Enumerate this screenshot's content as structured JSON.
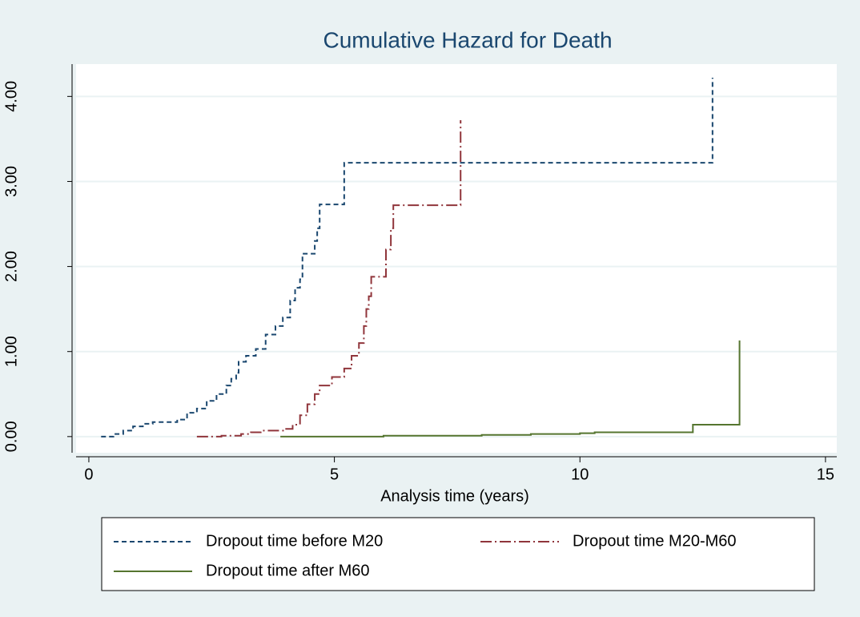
{
  "chart_data": {
    "type": "line",
    "step": "post",
    "title": "Cumulative Hazard for Death",
    "x_label": "Analysis time (years)",
    "xlim": [
      -0.26,
      15.23
    ],
    "ylim": [
      -0.19,
      4.38
    ],
    "xticks": [
      0,
      5,
      10,
      15
    ],
    "yticks": [
      {
        "value": 0,
        "label": "0.00"
      },
      {
        "value": 1,
        "label": "1.00"
      },
      {
        "value": 2,
        "label": "2.00"
      },
      {
        "value": 3,
        "label": "3.00"
      },
      {
        "value": 4,
        "label": "4.00"
      }
    ],
    "grid": true,
    "legend": "bottom",
    "series": [
      {
        "name": "Dropout time before M20",
        "color": "#1a476f",
        "line_style": "dash",
        "x": [
          0.25,
          0.5,
          0.7,
          0.9,
          1.1,
          1.3,
          1.8,
          2.0,
          2.2,
          2.4,
          2.6,
          2.8,
          2.9,
          3.0,
          3.05,
          3.2,
          3.4,
          3.6,
          3.8,
          3.95,
          4.1,
          4.2,
          4.3,
          4.35,
          4.6,
          4.65,
          4.7,
          5.2,
          12.7
        ],
        "values": [
          0,
          0.03,
          0.07,
          0.12,
          0.15,
          0.17,
          0.2,
          0.28,
          0.33,
          0.42,
          0.5,
          0.6,
          0.68,
          0.75,
          0.88,
          0.95,
          1.03,
          1.2,
          1.3,
          1.4,
          1.6,
          1.75,
          1.85,
          2.15,
          2.3,
          2.45,
          2.73,
          3.22,
          4.22
        ]
      },
      {
        "name": "Dropout time M20-M60",
        "color": "#90353b",
        "line_style": "dash-dot",
        "x": [
          2.2,
          2.7,
          3.1,
          3.3,
          3.5,
          4.0,
          4.15,
          4.3,
          4.45,
          4.6,
          4.7,
          4.95,
          5.2,
          5.35,
          5.5,
          5.6,
          5.65,
          5.7,
          5.75,
          6.05,
          6.15,
          6.2,
          7.57
        ],
        "values": [
          0,
          0.01,
          0.03,
          0.05,
          0.07,
          0.09,
          0.14,
          0.25,
          0.38,
          0.5,
          0.6,
          0.7,
          0.8,
          0.95,
          1.1,
          1.3,
          1.5,
          1.65,
          1.88,
          2.2,
          2.45,
          2.72,
          3.72
        ]
      },
      {
        "name": "Dropout time after M60",
        "color": "#55752f",
        "line_style": "solid",
        "x": [
          3.9,
          6,
          8,
          9,
          10,
          10.3,
          12.3,
          13.25
        ],
        "values": [
          0,
          0.01,
          0.02,
          0.03,
          0.04,
          0.05,
          0.14,
          1.13
        ]
      }
    ]
  }
}
